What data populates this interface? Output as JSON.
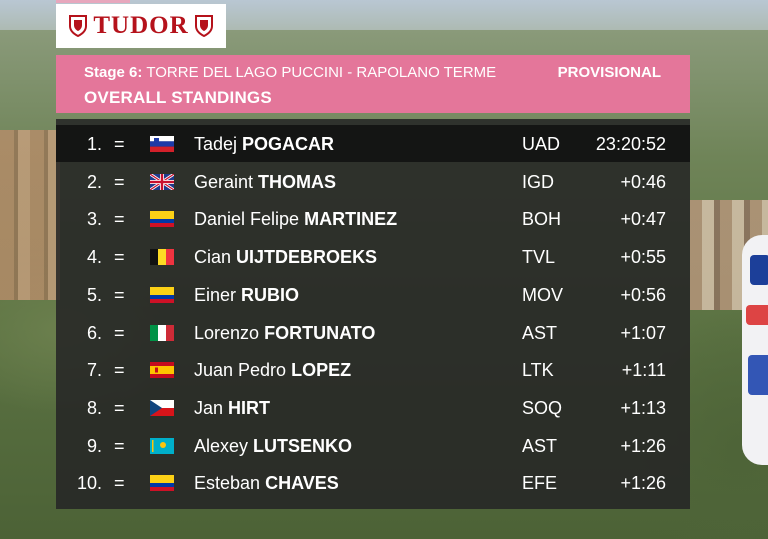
{
  "brand": {
    "logo_text": "TUDOR"
  },
  "header": {
    "stage_label": "Stage 6:",
    "route": "TORRE DEL LAGO PUCCINI - RAPOLANO TERME",
    "status": "PROVISIONAL",
    "title": "OVERALL STANDINGS"
  },
  "colors": {
    "header_pink": "#e4769a",
    "logo_red": "#b5121b"
  },
  "standings": [
    {
      "pos": "1.",
      "change": "=",
      "flag": "slovenia-flag",
      "first": "Tadej",
      "last": "POGACAR",
      "team": "UAD",
      "time": "23:20:52"
    },
    {
      "pos": "2.",
      "change": "=",
      "flag": "uk-flag",
      "first": "Geraint",
      "last": "THOMAS",
      "team": "IGD",
      "time": "+0:46"
    },
    {
      "pos": "3.",
      "change": "=",
      "flag": "colombia-flag",
      "first": "Daniel Felipe",
      "last": "MARTINEZ",
      "team": "BOH",
      "time": "+0:47"
    },
    {
      "pos": "4.",
      "change": "=",
      "flag": "belgium-flag",
      "first": "Cian",
      "last": "UIJTDEBROEKS",
      "team": "TVL",
      "time": "+0:55"
    },
    {
      "pos": "5.",
      "change": "=",
      "flag": "colombia-flag",
      "first": "Einer",
      "last": "RUBIO",
      "team": "MOV",
      "time": "+0:56"
    },
    {
      "pos": "6.",
      "change": "=",
      "flag": "italy-flag",
      "first": "Lorenzo",
      "last": "FORTUNATO",
      "team": "AST",
      "time": "+1:07"
    },
    {
      "pos": "7.",
      "change": "=",
      "flag": "spain-flag",
      "first": "Juan Pedro",
      "last": "LOPEZ",
      "team": "LTK",
      "time": "+1:11"
    },
    {
      "pos": "8.",
      "change": "=",
      "flag": "czech-flag",
      "first": "Jan",
      "last": "HIRT",
      "team": "SOQ",
      "time": "+1:13"
    },
    {
      "pos": "9.",
      "change": "=",
      "flag": "kazakhstan-flag",
      "first": "Alexey",
      "last": "LUTSENKO",
      "team": "AST",
      "time": "+1:26"
    },
    {
      "pos": "10.",
      "change": "=",
      "flag": "colombia-flag",
      "first": "Esteban",
      "last": "CHAVES",
      "team": "EFE",
      "time": "+1:26"
    }
  ]
}
